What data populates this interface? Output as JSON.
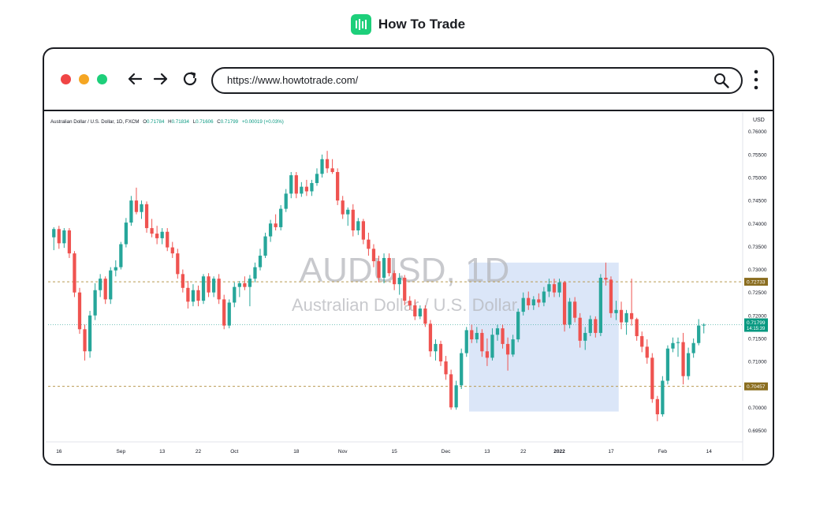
{
  "brand": {
    "name": "How To Trade",
    "logo_icon": "bar-chart-logo-icon",
    "accent": "#1dcf7a"
  },
  "browser": {
    "url": "https://www.howtotrade.com/",
    "buttons": {
      "close_color": "#f04545",
      "minimize_color": "#f5a623",
      "maximize_color": "#1dcf7a"
    },
    "icons": [
      "back-arrow-icon",
      "forward-arrow-icon",
      "reload-icon",
      "search-icon",
      "kebab-menu-icon"
    ]
  },
  "chart_data": {
    "type": "candlestick",
    "header": {
      "symbol": "Australian Dollar / U.S. Dollar, 1D, FXCM",
      "o_label": "O",
      "o": "0.71784",
      "h_label": "H",
      "h": "0.71834",
      "l_label": "L",
      "l": "0.71606",
      "c_label": "C",
      "c": "0.71799",
      "change": "+0.00019 (+0.03%)"
    },
    "watermark_title": "AUDUSD, 1D",
    "watermark_subtitle": "Australian Dollar / U.S. Dollar",
    "currency": "USD",
    "ylim": [
      0.6925,
      0.7615
    ],
    "y_ticks": [
      "0.76000",
      "0.75500",
      "0.75000",
      "0.74500",
      "0.74000",
      "0.73500",
      "0.73000",
      "0.72500",
      "0.72000",
      "0.71500",
      "0.71000",
      "0.70500",
      "0.70000",
      "0.69500"
    ],
    "x_ticks": [
      {
        "label": "16",
        "index": 1,
        "bold": false
      },
      {
        "label": "Sep",
        "index": 13,
        "bold": false
      },
      {
        "label": "13",
        "index": 21,
        "bold": false
      },
      {
        "label": "22",
        "index": 28,
        "bold": false
      },
      {
        "label": "Oct",
        "index": 35,
        "bold": false
      },
      {
        "label": "18",
        "index": 47,
        "bold": false
      },
      {
        "label": "Nov",
        "index": 56,
        "bold": false
      },
      {
        "label": "15",
        "index": 66,
        "bold": false
      },
      {
        "label": "Dec",
        "index": 76,
        "bold": false
      },
      {
        "label": "13",
        "index": 84,
        "bold": false
      },
      {
        "label": "22",
        "index": 91,
        "bold": false
      },
      {
        "label": "2022",
        "index": 98,
        "bold": true
      },
      {
        "label": "17",
        "index": 108,
        "bold": false
      },
      {
        "label": "Feb",
        "index": 118,
        "bold": false
      },
      {
        "label": "14",
        "index": 127,
        "bold": false
      }
    ],
    "levels": [
      {
        "value": 0.72733,
        "label": "0.72733",
        "color": "#8a6d1f"
      },
      {
        "value": 0.70457,
        "label": "0.70457",
        "color": "#8a6d1f"
      }
    ],
    "last_price": {
      "value": 0.71799,
      "label": "0.71799",
      "countdown": "14:15:39",
      "color": "#089981"
    },
    "highlight_zone": {
      "start_index": 81,
      "end_index": 110,
      "top": 0.7315,
      "bottom": 0.6991
    },
    "colors": {
      "up": "#26a69a",
      "down": "#ef5350"
    },
    "candles": [
      {
        "o": 0.737,
        "h": 0.7392,
        "l": 0.7342,
        "c": 0.7388
      },
      {
        "o": 0.7388,
        "h": 0.7395,
        "l": 0.7345,
        "c": 0.7357
      },
      {
        "o": 0.7357,
        "h": 0.739,
        "l": 0.7347,
        "c": 0.7385
      },
      {
        "o": 0.7385,
        "h": 0.739,
        "l": 0.7325,
        "c": 0.7335
      },
      {
        "o": 0.7335,
        "h": 0.734,
        "l": 0.724,
        "c": 0.725
      },
      {
        "o": 0.725,
        "h": 0.726,
        "l": 0.716,
        "c": 0.717
      },
      {
        "o": 0.717,
        "h": 0.718,
        "l": 0.7102,
        "c": 0.7122
      },
      {
        "o": 0.7122,
        "h": 0.721,
        "l": 0.7108,
        "c": 0.72
      },
      {
        "o": 0.72,
        "h": 0.727,
        "l": 0.719,
        "c": 0.7255
      },
      {
        "o": 0.7255,
        "h": 0.729,
        "l": 0.724,
        "c": 0.728
      },
      {
        "o": 0.728,
        "h": 0.7285,
        "l": 0.7225,
        "c": 0.7235
      },
      {
        "o": 0.7235,
        "h": 0.7305,
        "l": 0.7225,
        "c": 0.7298
      },
      {
        "o": 0.7298,
        "h": 0.732,
        "l": 0.7285,
        "c": 0.7305
      },
      {
        "o": 0.7305,
        "h": 0.736,
        "l": 0.73,
        "c": 0.7355
      },
      {
        "o": 0.7355,
        "h": 0.7412,
        "l": 0.7348,
        "c": 0.7402
      },
      {
        "o": 0.7402,
        "h": 0.746,
        "l": 0.7395,
        "c": 0.745
      },
      {
        "o": 0.745,
        "h": 0.7478,
        "l": 0.742,
        "c": 0.7425
      },
      {
        "o": 0.7425,
        "h": 0.745,
        "l": 0.741,
        "c": 0.7442
      },
      {
        "o": 0.7442,
        "h": 0.7448,
        "l": 0.738,
        "c": 0.739
      },
      {
        "o": 0.739,
        "h": 0.741,
        "l": 0.737,
        "c": 0.7378
      },
      {
        "o": 0.7378,
        "h": 0.7395,
        "l": 0.7355,
        "c": 0.7368
      },
      {
        "o": 0.7368,
        "h": 0.739,
        "l": 0.7355,
        "c": 0.7382
      },
      {
        "o": 0.7382,
        "h": 0.739,
        "l": 0.734,
        "c": 0.7348
      },
      {
        "o": 0.7348,
        "h": 0.736,
        "l": 0.7325,
        "c": 0.7335
      },
      {
        "o": 0.7335,
        "h": 0.7345,
        "l": 0.728,
        "c": 0.729
      },
      {
        "o": 0.729,
        "h": 0.73,
        "l": 0.725,
        "c": 0.726
      },
      {
        "o": 0.726,
        "h": 0.7275,
        "l": 0.7215,
        "c": 0.723
      },
      {
        "o": 0.723,
        "h": 0.7268,
        "l": 0.722,
        "c": 0.7255
      },
      {
        "o": 0.7255,
        "h": 0.7265,
        "l": 0.722,
        "c": 0.7232
      },
      {
        "o": 0.7232,
        "h": 0.729,
        "l": 0.7225,
        "c": 0.7285
      },
      {
        "o": 0.7285,
        "h": 0.7292,
        "l": 0.724,
        "c": 0.725
      },
      {
        "o": 0.725,
        "h": 0.7285,
        "l": 0.724,
        "c": 0.728
      },
      {
        "o": 0.728,
        "h": 0.729,
        "l": 0.7225,
        "c": 0.7235
      },
      {
        "o": 0.7235,
        "h": 0.7245,
        "l": 0.717,
        "c": 0.7178
      },
      {
        "o": 0.7178,
        "h": 0.7235,
        "l": 0.7172,
        "c": 0.7228
      },
      {
        "o": 0.7228,
        "h": 0.7272,
        "l": 0.7218,
        "c": 0.7262
      },
      {
        "o": 0.7262,
        "h": 0.7275,
        "l": 0.724,
        "c": 0.727
      },
      {
        "o": 0.727,
        "h": 0.7285,
        "l": 0.7255,
        "c": 0.7262
      },
      {
        "o": 0.7262,
        "h": 0.7288,
        "l": 0.722,
        "c": 0.728
      },
      {
        "o": 0.728,
        "h": 0.7315,
        "l": 0.7272,
        "c": 0.7305
      },
      {
        "o": 0.7305,
        "h": 0.7345,
        "l": 0.7298,
        "c": 0.733
      },
      {
        "o": 0.733,
        "h": 0.738,
        "l": 0.7325,
        "c": 0.7372
      },
      {
        "o": 0.7372,
        "h": 0.7408,
        "l": 0.736,
        "c": 0.74
      },
      {
        "o": 0.74,
        "h": 0.742,
        "l": 0.7385,
        "c": 0.7392
      },
      {
        "o": 0.7392,
        "h": 0.744,
        "l": 0.7385,
        "c": 0.7432
      },
      {
        "o": 0.7432,
        "h": 0.7475,
        "l": 0.7425,
        "c": 0.7465
      },
      {
        "o": 0.7465,
        "h": 0.7512,
        "l": 0.7455,
        "c": 0.7505
      },
      {
        "o": 0.7505,
        "h": 0.7512,
        "l": 0.7455,
        "c": 0.7465
      },
      {
        "o": 0.7465,
        "h": 0.749,
        "l": 0.7458,
        "c": 0.748
      },
      {
        "o": 0.748,
        "h": 0.7495,
        "l": 0.746,
        "c": 0.747
      },
      {
        "o": 0.747,
        "h": 0.7495,
        "l": 0.746,
        "c": 0.7488
      },
      {
        "o": 0.7488,
        "h": 0.752,
        "l": 0.7482,
        "c": 0.7508
      },
      {
        "o": 0.7508,
        "h": 0.755,
        "l": 0.75,
        "c": 0.754
      },
      {
        "o": 0.754,
        "h": 0.7558,
        "l": 0.751,
        "c": 0.752
      },
      {
        "o": 0.752,
        "h": 0.754,
        "l": 0.7508,
        "c": 0.7512
      },
      {
        "o": 0.7512,
        "h": 0.752,
        "l": 0.744,
        "c": 0.745
      },
      {
        "o": 0.745,
        "h": 0.746,
        "l": 0.741,
        "c": 0.742
      },
      {
        "o": 0.742,
        "h": 0.7435,
        "l": 0.7395,
        "c": 0.743
      },
      {
        "o": 0.743,
        "h": 0.7442,
        "l": 0.7372,
        "c": 0.7385
      },
      {
        "o": 0.7385,
        "h": 0.7412,
        "l": 0.7375,
        "c": 0.7405
      },
      {
        "o": 0.7405,
        "h": 0.741,
        "l": 0.7355,
        "c": 0.7365
      },
      {
        "o": 0.7365,
        "h": 0.738,
        "l": 0.733,
        "c": 0.7345
      },
      {
        "o": 0.7345,
        "h": 0.7355,
        "l": 0.7305,
        "c": 0.7318
      },
      {
        "o": 0.7318,
        "h": 0.733,
        "l": 0.7272,
        "c": 0.7282
      },
      {
        "o": 0.7282,
        "h": 0.7335,
        "l": 0.727,
        "c": 0.7325
      },
      {
        "o": 0.7325,
        "h": 0.7335,
        "l": 0.7285,
        "c": 0.7292
      },
      {
        "o": 0.7292,
        "h": 0.7298,
        "l": 0.7255,
        "c": 0.7268
      },
      {
        "o": 0.7268,
        "h": 0.7292,
        "l": 0.7245,
        "c": 0.7282
      },
      {
        "o": 0.7282,
        "h": 0.7288,
        "l": 0.7222,
        "c": 0.7232
      },
      {
        "o": 0.7232,
        "h": 0.7242,
        "l": 0.7212,
        "c": 0.7222
      },
      {
        "o": 0.7222,
        "h": 0.7235,
        "l": 0.719,
        "c": 0.7198
      },
      {
        "o": 0.7198,
        "h": 0.7222,
        "l": 0.7192,
        "c": 0.7215
      },
      {
        "o": 0.7215,
        "h": 0.7222,
        "l": 0.7175,
        "c": 0.7182
      },
      {
        "o": 0.7182,
        "h": 0.719,
        "l": 0.711,
        "c": 0.7122
      },
      {
        "o": 0.7122,
        "h": 0.7148,
        "l": 0.7102,
        "c": 0.7138
      },
      {
        "o": 0.7138,
        "h": 0.7145,
        "l": 0.709,
        "c": 0.71
      },
      {
        "o": 0.71,
        "h": 0.7112,
        "l": 0.706,
        "c": 0.7072
      },
      {
        "o": 0.7072,
        "h": 0.7082,
        "l": 0.6995,
        "c": 0.7
      },
      {
        "o": 0.7,
        "h": 0.7058,
        "l": 0.6995,
        "c": 0.7048
      },
      {
        "o": 0.7048,
        "h": 0.7128,
        "l": 0.704,
        "c": 0.7118
      },
      {
        "o": 0.7118,
        "h": 0.7175,
        "l": 0.711,
        "c": 0.7168
      },
      {
        "o": 0.7168,
        "h": 0.718,
        "l": 0.714,
        "c": 0.7148
      },
      {
        "o": 0.7148,
        "h": 0.7175,
        "l": 0.714,
        "c": 0.7162
      },
      {
        "o": 0.7162,
        "h": 0.717,
        "l": 0.711,
        "c": 0.7122
      },
      {
        "o": 0.7122,
        "h": 0.715,
        "l": 0.709,
        "c": 0.7108
      },
      {
        "o": 0.7108,
        "h": 0.7172,
        "l": 0.7102,
        "c": 0.7158
      },
      {
        "o": 0.7158,
        "h": 0.718,
        "l": 0.7145,
        "c": 0.7172
      },
      {
        "o": 0.7172,
        "h": 0.718,
        "l": 0.7128,
        "c": 0.7138
      },
      {
        "o": 0.7138,
        "h": 0.7152,
        "l": 0.708,
        "c": 0.7115
      },
      {
        "o": 0.7115,
        "h": 0.7158,
        "l": 0.711,
        "c": 0.7148
      },
      {
        "o": 0.7148,
        "h": 0.7215,
        "l": 0.7142,
        "c": 0.7208
      },
      {
        "o": 0.7208,
        "h": 0.725,
        "l": 0.72,
        "c": 0.7238
      },
      {
        "o": 0.7238,
        "h": 0.7252,
        "l": 0.7212,
        "c": 0.7222
      },
      {
        "o": 0.7222,
        "h": 0.7242,
        "l": 0.7212,
        "c": 0.7235
      },
      {
        "o": 0.7235,
        "h": 0.7248,
        "l": 0.7218,
        "c": 0.7228
      },
      {
        "o": 0.7228,
        "h": 0.7262,
        "l": 0.722,
        "c": 0.7252
      },
      {
        "o": 0.7252,
        "h": 0.728,
        "l": 0.724,
        "c": 0.7268
      },
      {
        "o": 0.7268,
        "h": 0.728,
        "l": 0.724,
        "c": 0.725
      },
      {
        "o": 0.725,
        "h": 0.728,
        "l": 0.724,
        "c": 0.7272
      },
      {
        "o": 0.7272,
        "h": 0.7275,
        "l": 0.7165,
        "c": 0.718
      },
      {
        "o": 0.718,
        "h": 0.7238,
        "l": 0.7172,
        "c": 0.723
      },
      {
        "o": 0.723,
        "h": 0.724,
        "l": 0.7185,
        "c": 0.7195
      },
      {
        "o": 0.7195,
        "h": 0.7205,
        "l": 0.713,
        "c": 0.7145
      },
      {
        "o": 0.7145,
        "h": 0.7175,
        "l": 0.7125,
        "c": 0.7162
      },
      {
        "o": 0.7162,
        "h": 0.72,
        "l": 0.7155,
        "c": 0.7192
      },
      {
        "o": 0.7192,
        "h": 0.7198,
        "l": 0.7152,
        "c": 0.7162
      },
      {
        "o": 0.7162,
        "h": 0.729,
        "l": 0.7155,
        "c": 0.7282
      },
      {
        "o": 0.7282,
        "h": 0.7315,
        "l": 0.7265,
        "c": 0.7278
      },
      {
        "o": 0.7278,
        "h": 0.7285,
        "l": 0.7195,
        "c": 0.7205
      },
      {
        "o": 0.7205,
        "h": 0.7232,
        "l": 0.719,
        "c": 0.7212
      },
      {
        "o": 0.7212,
        "h": 0.723,
        "l": 0.717,
        "c": 0.7185
      },
      {
        "o": 0.7185,
        "h": 0.7212,
        "l": 0.7158,
        "c": 0.7205
      },
      {
        "o": 0.7205,
        "h": 0.728,
        "l": 0.7178,
        "c": 0.7192
      },
      {
        "o": 0.7192,
        "h": 0.7195,
        "l": 0.7145,
        "c": 0.7155
      },
      {
        "o": 0.7155,
        "h": 0.7165,
        "l": 0.712,
        "c": 0.7132
      },
      {
        "o": 0.7132,
        "h": 0.7148,
        "l": 0.7095,
        "c": 0.7108
      },
      {
        "o": 0.7108,
        "h": 0.7118,
        "l": 0.701,
        "c": 0.7018
      },
      {
        "o": 0.7018,
        "h": 0.7025,
        "l": 0.697,
        "c": 0.6985
      },
      {
        "o": 0.6985,
        "h": 0.7068,
        "l": 0.698,
        "c": 0.7058
      },
      {
        "o": 0.7058,
        "h": 0.7135,
        "l": 0.705,
        "c": 0.7128
      },
      {
        "o": 0.7128,
        "h": 0.7152,
        "l": 0.712,
        "c": 0.714
      },
      {
        "o": 0.714,
        "h": 0.7152,
        "l": 0.711,
        "c": 0.7142
      },
      {
        "o": 0.7142,
        "h": 0.7162,
        "l": 0.705,
        "c": 0.7068
      },
      {
        "o": 0.7068,
        "h": 0.713,
        "l": 0.706,
        "c": 0.7118
      },
      {
        "o": 0.7118,
        "h": 0.715,
        "l": 0.7108,
        "c": 0.714
      },
      {
        "o": 0.714,
        "h": 0.7192,
        "l": 0.7135,
        "c": 0.7178
      },
      {
        "o": 0.7178,
        "h": 0.7183,
        "l": 0.7161,
        "c": 0.718
      }
    ]
  }
}
